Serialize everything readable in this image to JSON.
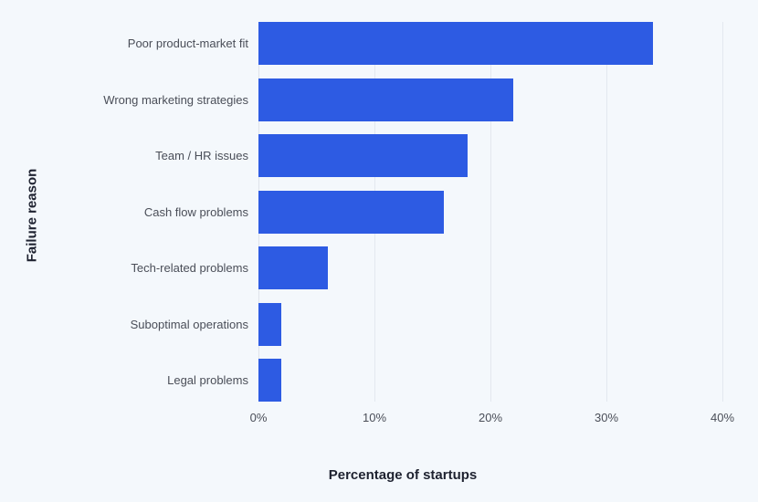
{
  "chart_data": {
    "type": "bar",
    "orientation": "horizontal",
    "title": "",
    "xlabel": "Percentage of startups",
    "ylabel": "Failure reason",
    "categories": [
      "Poor product-market fit",
      "Wrong marketing strategies",
      "Team / HR issues",
      "Cash flow problems",
      "Tech-related problems",
      "Suboptimal operations",
      "Legal problems"
    ],
    "values": [
      34,
      22,
      18,
      16,
      6,
      2,
      2
    ],
    "unit": "%",
    "xlim": [
      0,
      40
    ],
    "xticks": [
      "0%",
      "10%",
      "20%",
      "30%",
      "40%"
    ],
    "grid": "vertical",
    "legend": null,
    "bar_color": "#2d5be3"
  }
}
